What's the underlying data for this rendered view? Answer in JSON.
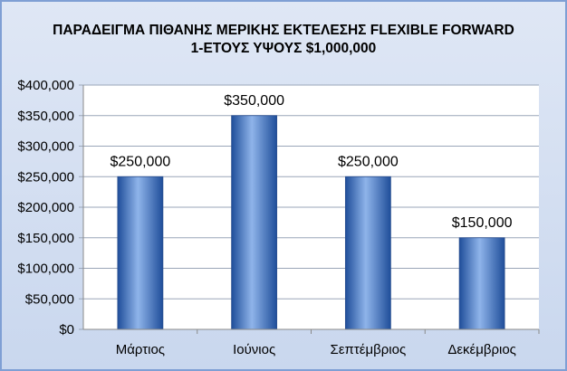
{
  "chart_data": {
    "type": "bar",
    "title_line1": "ΠΑΡΑΔΕΙΓΜΑ ΠΙΘΑΝΗΣ ΜΕΡΙΚΗΣ ΕΚΤΕΛΕΣΗΣ FLEXIBLE FORWARD",
    "title_line2": "1-ΕΤΟΥΣ ΥΨΟΥΣ $1,000,000",
    "categories": [
      "Μάρτιος",
      "Ιούνιος",
      "Σεπτέμβριος",
      "Δεκέμβριος"
    ],
    "values": [
      250000,
      350000,
      250000,
      150000
    ],
    "data_labels": [
      "$250,000",
      "$350,000",
      "$250,000",
      "$150,000"
    ],
    "y_ticks": [
      "$0",
      "$50,000",
      "$100,000",
      "$150,000",
      "$200,000",
      "$250,000",
      "$300,000",
      "$350,000",
      "$400,000"
    ],
    "ylim": [
      0,
      400000
    ],
    "grid": true,
    "colors": {
      "bar_dark": "#1f4e9a",
      "bar_light": "#8fb4ea",
      "gridline": "#9aa6b8",
      "plot_bg": "#ffffff"
    }
  }
}
